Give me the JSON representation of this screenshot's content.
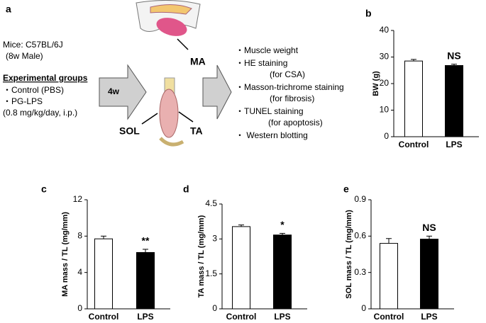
{
  "panel_a": {
    "label": "a",
    "mouse": "Mice: C57BL/6J",
    "age": "(8w Male)",
    "groups_title": "Experimental groups",
    "groups": [
      "・Control  (PBS)",
      "・PG-LPS",
      "(0.8 mg/kg/day, i.p.)"
    ],
    "duration": "4w",
    "muscles": {
      "ma": "MA",
      "sol": "SOL",
      "ta": "TA"
    },
    "analyses": [
      "・Muscle weight",
      "・HE staining",
      "(for CSA)",
      "・Masson-trichrome staining",
      "(for fibrosis)",
      "・TUNEL staining",
      "(for apoptosis)",
      "・ Western  blotting"
    ]
  },
  "chart_data": [
    {
      "type": "bar",
      "label": "b",
      "ylabel": "BW (g)",
      "categories": [
        "Control",
        "LPS"
      ],
      "values": [
        28.5,
        26.8
      ],
      "errors": [
        0.6,
        0.5
      ],
      "colors": [
        "#ffffff",
        "#000000"
      ],
      "annotation": "NS",
      "ylim": [
        0,
        40
      ],
      "yticks": [
        0,
        10,
        20,
        30,
        40
      ]
    },
    {
      "type": "bar",
      "label": "c",
      "ylabel": "MA mass / TL (mg/mm)",
      "categories": [
        "Control",
        "LPS"
      ],
      "values": [
        7.7,
        6.2
      ],
      "errors": [
        0.3,
        0.35
      ],
      "colors": [
        "#ffffff",
        "#000000"
      ],
      "annotation": "**",
      "ylim": [
        0,
        12
      ],
      "yticks": [
        0,
        4,
        8,
        12
      ]
    },
    {
      "type": "bar",
      "label": "d",
      "ylabel": "TA mass / TL (mg/mm)",
      "categories": [
        "Control",
        "LPS"
      ],
      "values": [
        3.53,
        3.17
      ],
      "errors": [
        0.07,
        0.07
      ],
      "colors": [
        "#ffffff",
        "#000000"
      ],
      "annotation": "*",
      "ylim": [
        0,
        4.5
      ],
      "yticks": [
        0,
        1.5,
        3,
        4.5
      ]
    },
    {
      "type": "bar",
      "label": "e",
      "ylabel": "SOL mass / TL (mg/mm)",
      "categories": [
        "Control",
        "LPS"
      ],
      "values": [
        0.54,
        0.575
      ],
      "errors": [
        0.04,
        0.025
      ],
      "colors": [
        "#ffffff",
        "#000000"
      ],
      "annotation": "NS",
      "ylim": [
        0,
        0.9
      ],
      "yticks": [
        0,
        0.3,
        0.6,
        0.9
      ]
    }
  ]
}
